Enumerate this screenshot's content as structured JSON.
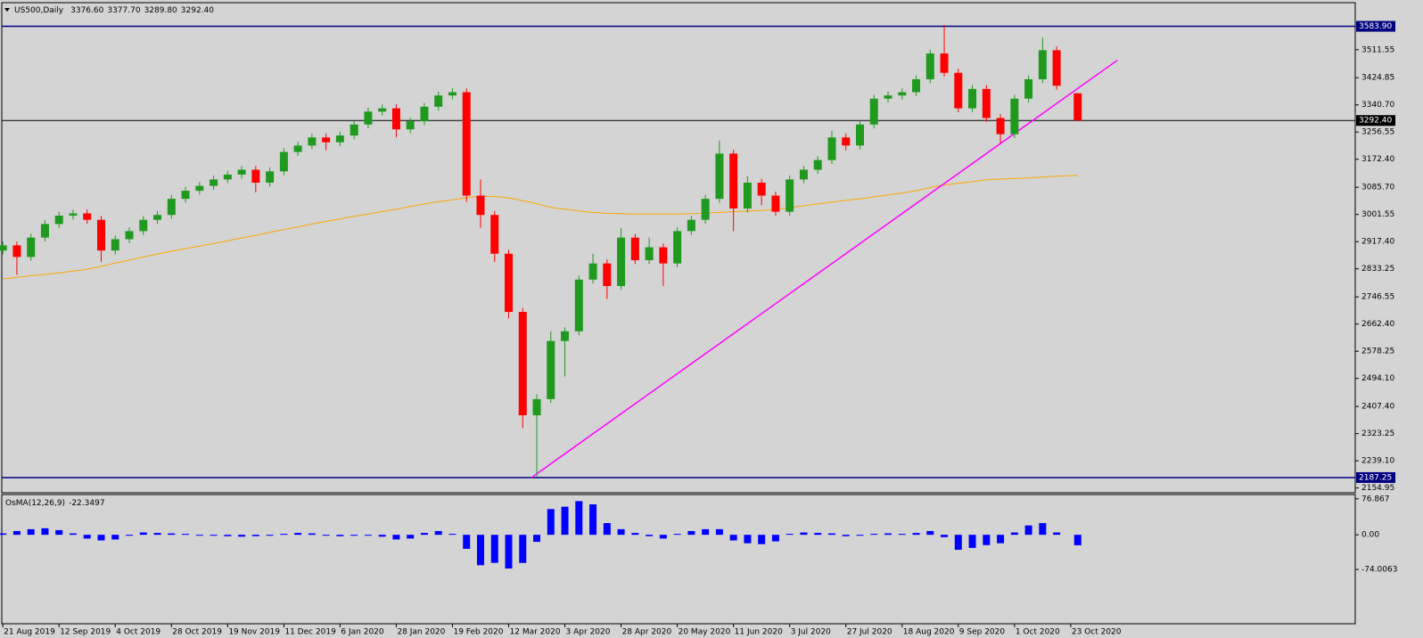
{
  "chart_data": {
    "type": "candlestick",
    "title": "US500,Daily",
    "header_values": [
      "3376.60",
      "3377.70",
      "3289.80",
      "3292.40"
    ],
    "x": [
      0,
      4,
      8,
      12,
      16,
      20,
      24,
      28,
      32,
      36,
      40,
      44,
      48,
      52,
      56,
      60,
      64,
      68,
      72,
      76,
      80,
      84,
      88,
      92,
      96,
      100,
      104,
      108,
      112,
      116,
      120,
      124,
      128,
      132,
      136,
      140,
      144,
      148,
      152,
      156,
      160,
      164,
      168,
      172,
      176,
      180,
      184,
      188,
      192,
      196,
      200,
      204,
      208,
      212,
      216,
      220,
      224,
      228,
      232,
      236,
      240,
      244,
      248,
      252,
      256,
      260,
      264,
      268,
      272,
      276,
      280,
      284,
      288,
      292,
      296,
      300,
      306
    ],
    "open": [
      2890,
      2906,
      2870,
      2930,
      2972,
      2998,
      3005,
      2985,
      2890,
      2925,
      2950,
      2985,
      3000,
      3050,
      3075,
      3090,
      3110,
      3125,
      3140,
      3100,
      3135,
      3195,
      3215,
      3240,
      3225,
      3246,
      3280,
      3320,
      3330,
      3265,
      3290,
      3335,
      3370,
      3380,
      3060,
      3000,
      2880,
      2700,
      2380,
      2430,
      2610,
      2640,
      2800,
      2850,
      2780,
      2930,
      2860,
      2900,
      2850,
      2950,
      2985,
      3050,
      3190,
      3020,
      3100,
      3060,
      3010,
      3110,
      3140,
      3170,
      3240,
      3215,
      3280,
      3360,
      3370,
      3380,
      3420,
      3500,
      3440,
      3330,
      3390,
      3300,
      3250,
      3360,
      3420,
      3510,
      3376.6
    ],
    "high": [
      2918,
      2918,
      2942,
      2984,
      3010,
      3017,
      3017,
      2997,
      2937,
      2962,
      2997,
      3012,
      3062,
      3087,
      3102,
      3122,
      3137,
      3152,
      3152,
      3147,
      3207,
      3227,
      3252,
      3252,
      3258,
      3292,
      3332,
      3342,
      3342,
      3302,
      3347,
      3382,
      3393,
      3392,
      3110,
      3012,
      2892,
      2712,
      2445,
      2640,
      2652,
      2812,
      2880,
      2862,
      2960,
      2942,
      2930,
      2912,
      2962,
      2997,
      3062,
      3230,
      3202,
      3120,
      3112,
      3072,
      3122,
      3152,
      3182,
      3260,
      3252,
      3292,
      3372,
      3382,
      3392,
      3432,
      3512,
      3588,
      3452,
      3402,
      3402,
      3312,
      3372,
      3432,
      3549,
      3522,
      3377.7
    ],
    "low": [
      2878,
      2815,
      2858,
      2918,
      2960,
      2986,
      2973,
      2855,
      2878,
      2913,
      2938,
      2973,
      2988,
      3038,
      3063,
      3078,
      3098,
      3113,
      3070,
      3088,
      3123,
      3183,
      3203,
      3200,
      3213,
      3234,
      3268,
      3308,
      3240,
      3253,
      3278,
      3323,
      3358,
      3040,
      2960,
      2855,
      2680,
      2340,
      2191,
      2418,
      2500,
      2628,
      2788,
      2740,
      2768,
      2848,
      2848,
      2780,
      2838,
      2938,
      2973,
      3038,
      2950,
      3008,
      3030,
      2998,
      2998,
      3098,
      3128,
      3158,
      3200,
      3203,
      3268,
      3348,
      3358,
      3368,
      3408,
      3428,
      3318,
      3318,
      3288,
      3223,
      3238,
      3348,
      3408,
      3388,
      3289.8
    ],
    "close": [
      2906,
      2870,
      2930,
      2972,
      2998,
      3005,
      2985,
      2890,
      2925,
      2950,
      2985,
      3000,
      3050,
      3075,
      3090,
      3110,
      3125,
      3140,
      3100,
      3135,
      3195,
      3215,
      3240,
      3225,
      3246,
      3280,
      3320,
      3330,
      3265,
      3290,
      3335,
      3370,
      3380,
      3060,
      3000,
      2880,
      2700,
      2380,
      2430,
      2610,
      2640,
      2800,
      2850,
      2780,
      2930,
      2860,
      2900,
      2850,
      2950,
      2985,
      3050,
      3190,
      3020,
      3100,
      3060,
      3010,
      3110,
      3140,
      3170,
      3240,
      3215,
      3280,
      3360,
      3370,
      3380,
      3420,
      3500,
      3440,
      3330,
      3390,
      3300,
      3250,
      3360,
      3420,
      3510,
      3400,
      3292.4
    ],
    "bull_color": "#1f9a1f",
    "bear_color": "#ff0000",
    "xlim": [
      -0.3,
      385
    ],
    "xticks": [
      {
        "value": 0,
        "label": "21 Aug 2019"
      },
      {
        "value": 16,
        "label": "12 Sep 2019"
      },
      {
        "value": 32,
        "label": "4 Oct 2019"
      },
      {
        "value": 48,
        "label": "28 Oct 2019"
      },
      {
        "value": 64,
        "label": "19 Nov 2019"
      },
      {
        "value": 80,
        "label": "11 Dec 2019"
      },
      {
        "value": 96,
        "label": "6 Jan 2020"
      },
      {
        "value": 112,
        "label": "28 Jan 2020"
      },
      {
        "value": 128,
        "label": "19 Feb 2020"
      },
      {
        "value": 144,
        "label": "12 Mar 2020"
      },
      {
        "value": 160,
        "label": "3 Apr 2020"
      },
      {
        "value": 176,
        "label": "28 Apr 2020"
      },
      {
        "value": 192,
        "label": "20 May 2020"
      },
      {
        "value": 208,
        "label": "11 Jun 2020"
      },
      {
        "value": 224,
        "label": "3 Jul 2020"
      },
      {
        "value": 240,
        "label": "27 Jul 2020"
      },
      {
        "value": 256,
        "label": "18 Aug 2020"
      },
      {
        "value": 272,
        "label": "9 Sep 2020"
      },
      {
        "value": 288,
        "label": "1 Oct 2020"
      },
      {
        "value": 304,
        "label": "23 Oct 2020"
      }
    ],
    "ylim": [
      2140.2,
      3657.1
    ],
    "yticks": [
      3511.55,
      3424.85,
      {
        "value": 3340.7,
        "label": "3340.70"
      },
      3256.55,
      {
        "value": 3172.4,
        "label": "3172.40"
      },
      {
        "value": 3085.7,
        "label": "3085.70"
      },
      3001.55,
      {
        "value": 2917.4,
        "label": "2917.40"
      },
      2833.25,
      2746.55,
      {
        "value": 2662.4,
        "label": "2662.40"
      },
      2578.25,
      {
        "value": 2494.1,
        "label": "2494.10"
      },
      {
        "value": 2407.4,
        "label": "2407.40"
      },
      2323.25,
      {
        "value": 2239.1,
        "label": "2239.10"
      },
      2154.95
    ],
    "hlines": [
      {
        "value": 3583.9,
        "label": "3583.90",
        "color": "#000080"
      },
      {
        "value": 3292.4,
        "label": "3292.40",
        "color": "#000000"
      },
      {
        "value": 2187.25,
        "label": "2187.25",
        "color": "#000080"
      }
    ],
    "trendline": {
      "x": [
        150.5,
        317.3
      ],
      "y": [
        2187.25,
        3479
      ],
      "color": "#ff00ff"
    },
    "moving_average": {
      "color": "#ffa500",
      "values": [
        2802,
        2807,
        2812,
        2816,
        2821,
        2826,
        2832,
        2841,
        2851,
        2860,
        2870,
        2879,
        2888,
        2896,
        2904,
        2912,
        2920,
        2929,
        2937,
        2946,
        2955,
        2963,
        2972,
        2980,
        2988,
        2996,
        3003,
        3011,
        3018,
        3026,
        3034,
        3041,
        3047,
        3053,
        3058,
        3057,
        3053,
        3044,
        3035,
        3023,
        3018,
        3012,
        3008,
        3005,
        3004,
        3003,
        3003,
        3003,
        3003,
        3004,
        3006,
        3008,
        3010,
        3012,
        3014,
        3018,
        3022,
        3029,
        3034,
        3040,
        3045,
        3050,
        3056,
        3062,
        3068,
        3075,
        3085,
        3093,
        3098,
        3103,
        3109,
        3111,
        3113,
        3115,
        3117,
        3120,
        3123
      ]
    },
    "indicator": {
      "type": "bar",
      "title": "OsMA(12,26,9)",
      "color": "#0000ff",
      "ylim": [
        -190,
        86
      ],
      "yticks": [
        76.867,
        {
          "value": 0,
          "label": "0.00"
        },
        -74.0063
      ],
      "values": [
        3,
        8,
        12,
        14,
        10,
        3,
        -8,
        -12,
        -10,
        -2,
        5,
        4,
        3,
        2,
        -1,
        -2,
        -3,
        -4,
        -3,
        -2,
        2,
        4,
        3,
        -1,
        -3,
        -2,
        -1,
        -4,
        -10,
        -8,
        4,
        8,
        2,
        -30,
        -65,
        -60,
        -72,
        -60,
        -15,
        55,
        60,
        72,
        65,
        25,
        12,
        4,
        -3,
        -8,
        2,
        8,
        12,
        12,
        -12,
        -18,
        -20,
        -14,
        2,
        5,
        4,
        3,
        -3,
        -2,
        2,
        3,
        2,
        4,
        8,
        -5,
        -32,
        -28,
        -22,
        -18,
        5,
        20,
        25,
        5,
        -22.3497
      ]
    }
  }
}
